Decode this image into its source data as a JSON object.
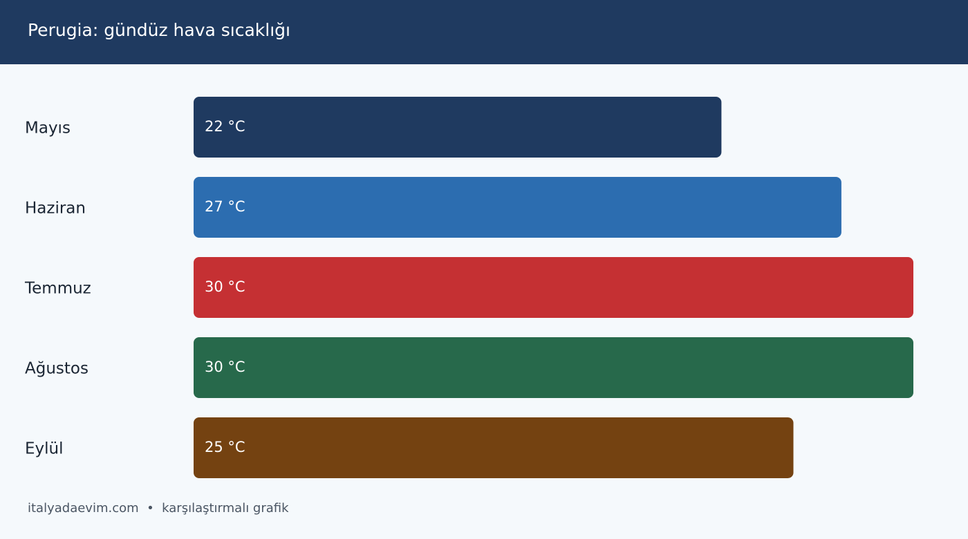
{
  "chart_data": {
    "type": "bar",
    "orientation": "horizontal",
    "title": "Perugia: gündüz hava sıcaklığı",
    "categories": [
      "Mayıs",
      "Haziran",
      "Temmuz",
      "Ağustos",
      "Eylül"
    ],
    "values": [
      22,
      27,
      30,
      30,
      25
    ],
    "value_labels": [
      "22 °C",
      "27 °C",
      "30 °C",
      "30 °C",
      "25 °C"
    ],
    "colors": [
      "#1f3a60",
      "#2c6db0",
      "#c53033",
      "#27694b",
      "#744211"
    ],
    "xlim": [
      0,
      30
    ],
    "footer": "italyadaevim.com  •  karşılaştırmalı grafik"
  }
}
